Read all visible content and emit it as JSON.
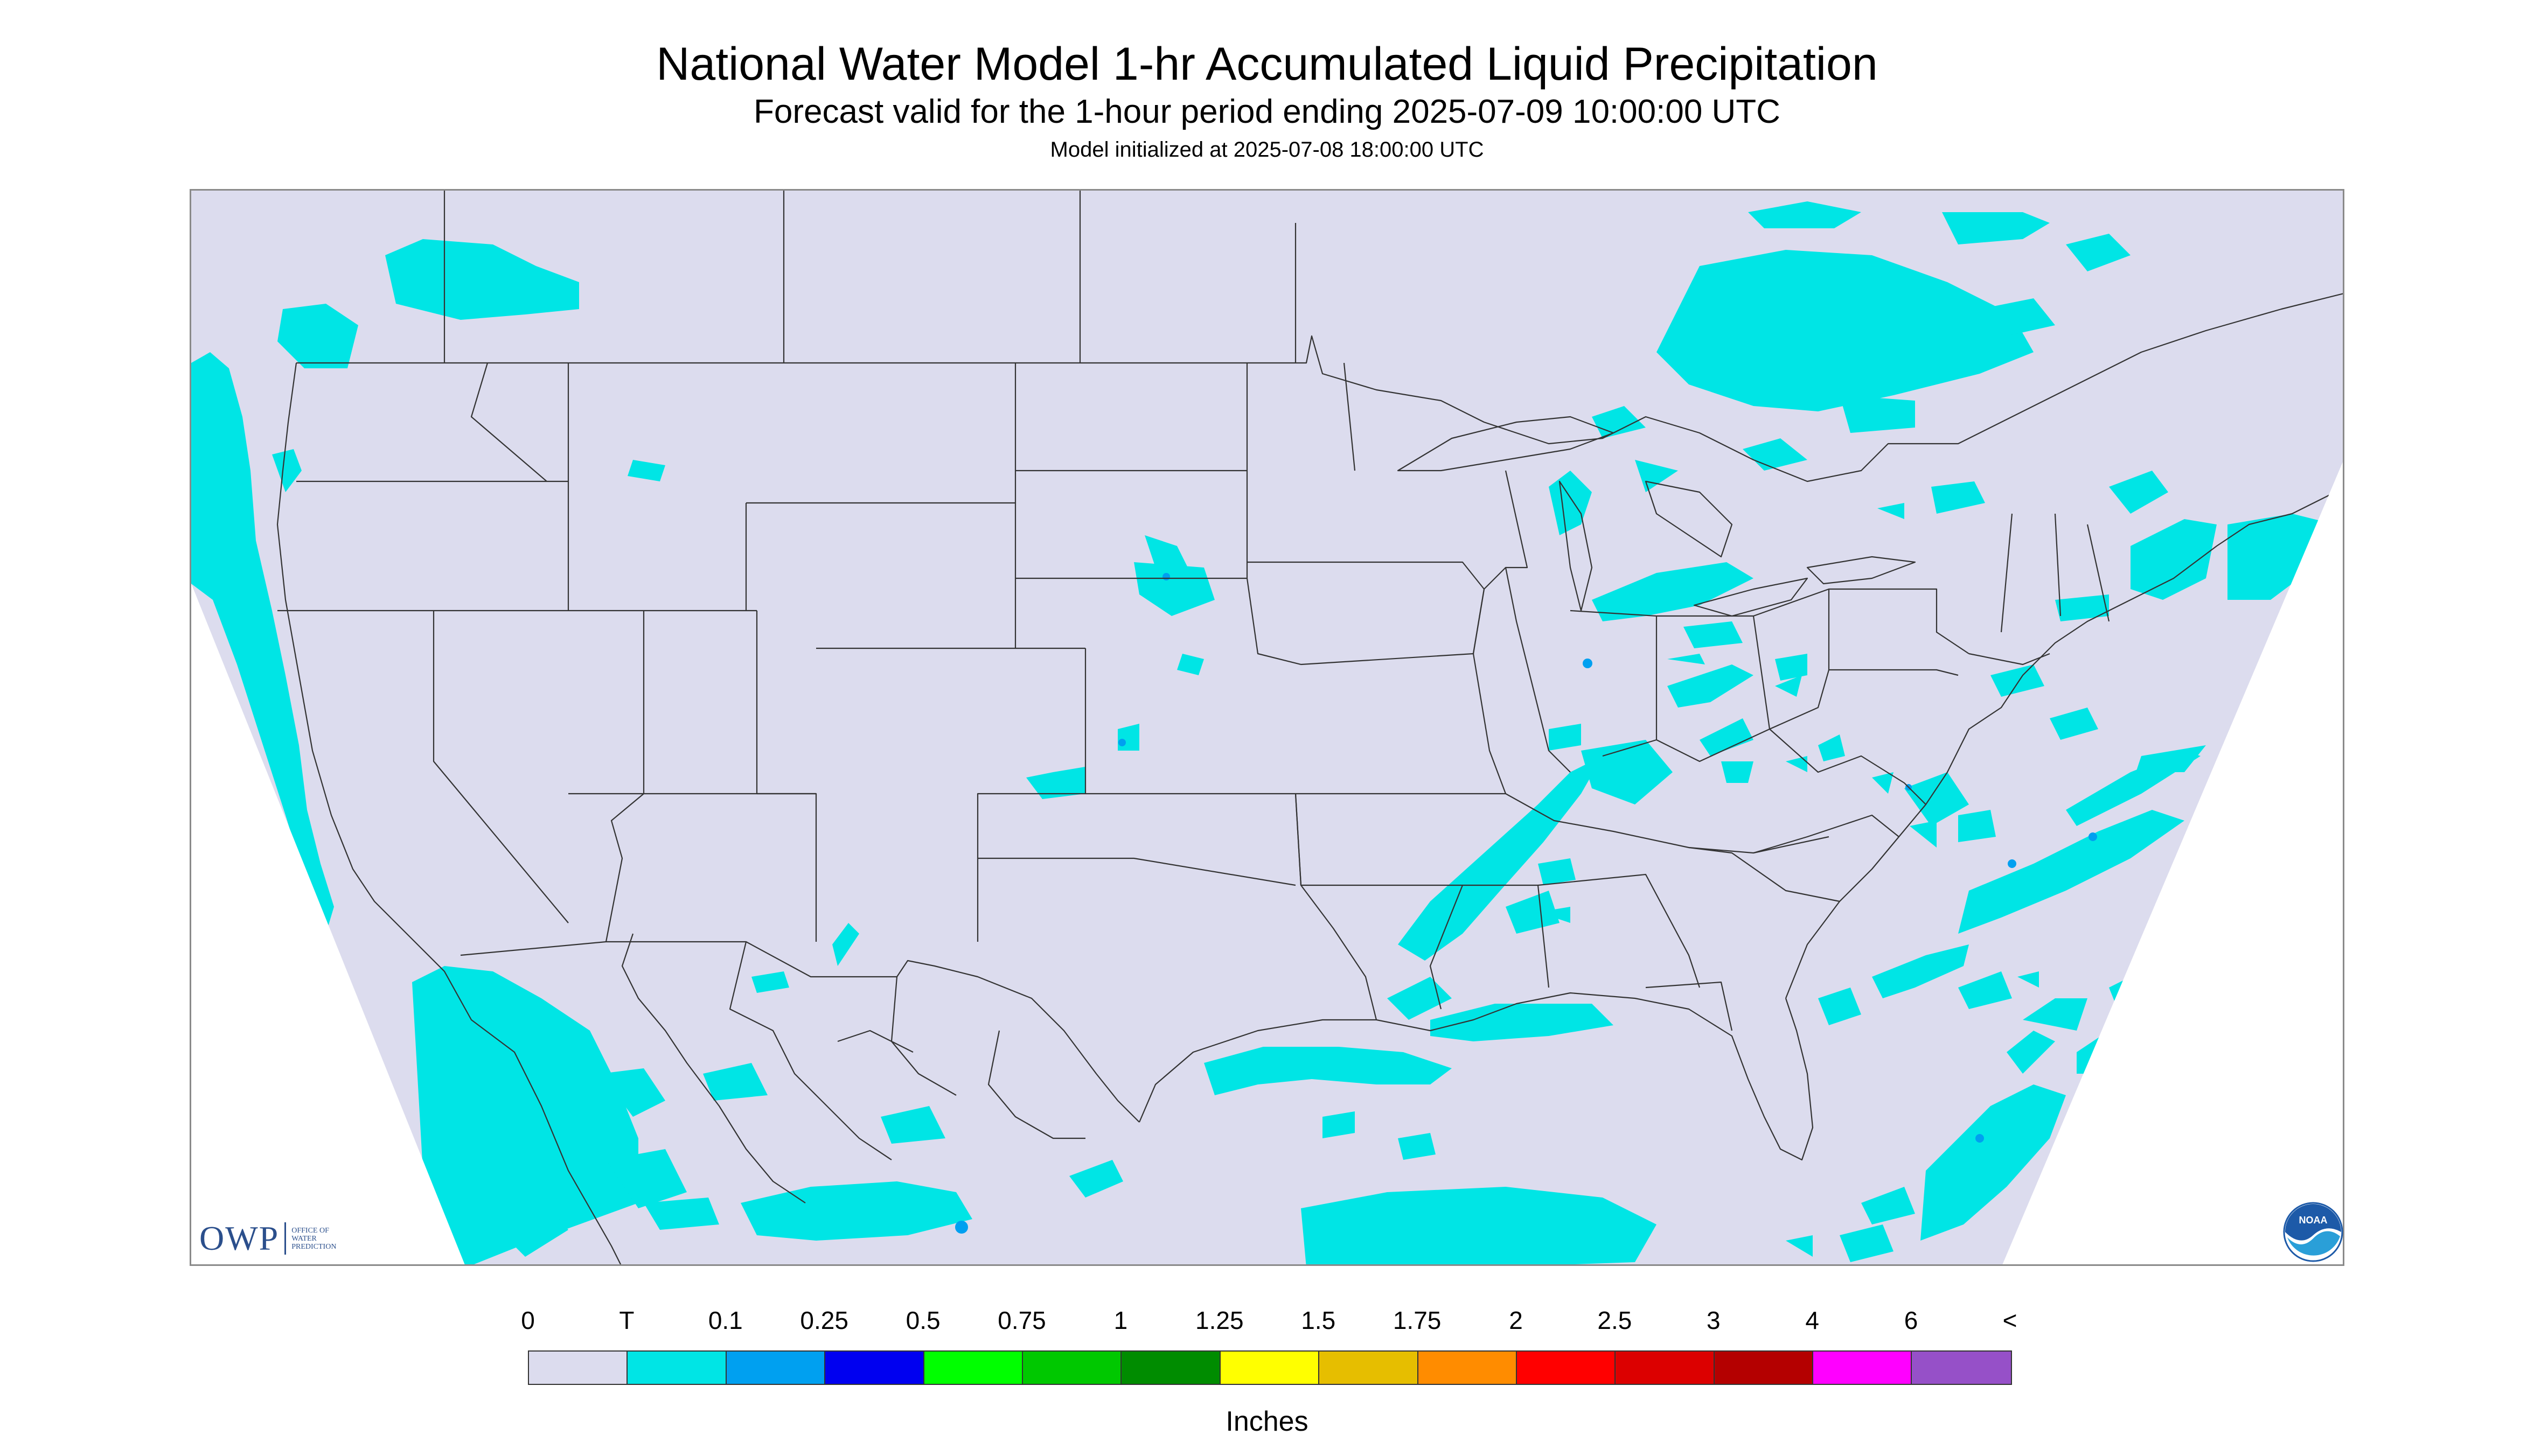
{
  "title": "National Water Model 1-hr Accumulated Liquid Precipitation",
  "subtitle": "Forecast valid for the 1-hour period ending 2025-07-09 10:00:00 UTC",
  "init_text": "Model initialized at 2025-07-08 18:00:00 UTC",
  "logos": {
    "owp": {
      "text": "OWP",
      "sub": [
        "OFFICE OF",
        "WATER",
        "PREDICTION"
      ]
    },
    "noaa": {
      "text": "NOAA"
    }
  },
  "legend": {
    "labels": [
      "0",
      "T",
      "0.1",
      "0.25",
      "0.5",
      "0.75",
      "1",
      "1.25",
      "1.5",
      "1.75",
      "2",
      "2.5",
      "3",
      "4",
      "6",
      "<"
    ],
    "colors": [
      "#dcdcee",
      "#00e5e5",
      "#00a0f0",
      "#0000f0",
      "#00ff00",
      "#00c800",
      "#008c00",
      "#ffff00",
      "#e6be00",
      "#ff8c00",
      "#ff0000",
      "#dc0000",
      "#b40000",
      "#ff00ff",
      "#9650c8"
    ],
    "units": "Inches"
  },
  "map": {
    "background_color": "#dcdcee",
    "precip_color": "#00e5e5",
    "heavy_color": "#00a0f0",
    "border_color": "#333333"
  }
}
